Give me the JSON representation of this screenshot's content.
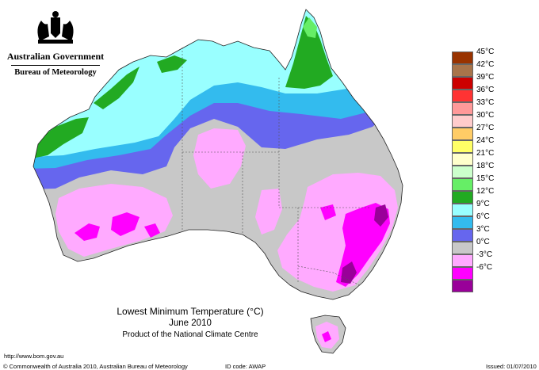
{
  "header": {
    "government": "Australian Government",
    "bureau": "Bureau of Meteorology"
  },
  "map": {
    "title": "Lowest Minimum Temperature (°C)",
    "period": "June 2010",
    "credit": "Product of the National Climate Centre"
  },
  "legend": {
    "items": [
      {
        "label": "45°C",
        "color": "#993300"
      },
      {
        "label": "42°C",
        "color": "#a8744a"
      },
      {
        "label": "39°C",
        "color": "#cc0000"
      },
      {
        "label": "36°C",
        "color": "#ff3333"
      },
      {
        "label": "33°C",
        "color": "#ff9999"
      },
      {
        "label": "30°C",
        "color": "#ffcccc"
      },
      {
        "label": "27°C",
        "color": "#ffcc66"
      },
      {
        "label": "24°C",
        "color": "#ffff66"
      },
      {
        "label": "21°C",
        "color": "#ffffcc"
      },
      {
        "label": "18°C",
        "color": "#ccffcc"
      },
      {
        "label": "15°C",
        "color": "#66ee66"
      },
      {
        "label": "12°C",
        "color": "#22aa22"
      },
      {
        "label": "9°C",
        "color": "#99ffff"
      },
      {
        "label": "6°C",
        "color": "#33bbee"
      },
      {
        "label": "3°C",
        "color": "#6666ee"
      },
      {
        "label": "0°C",
        "color": "#c8c8c8"
      },
      {
        "label": "-3°C",
        "color": "#ffaaff"
      },
      {
        "label": "-6°C",
        "color": "#ff00ff"
      },
      {
        "label": "",
        "color": "#990099"
      }
    ]
  },
  "footer": {
    "url": "http://www.bom.gov.au",
    "copyright": "© Commonwealth of Australia 2010, Australian Bureau of Meteorology",
    "id_code": "ID code: AWAP",
    "issued": "Issued: 01/07/2010"
  }
}
